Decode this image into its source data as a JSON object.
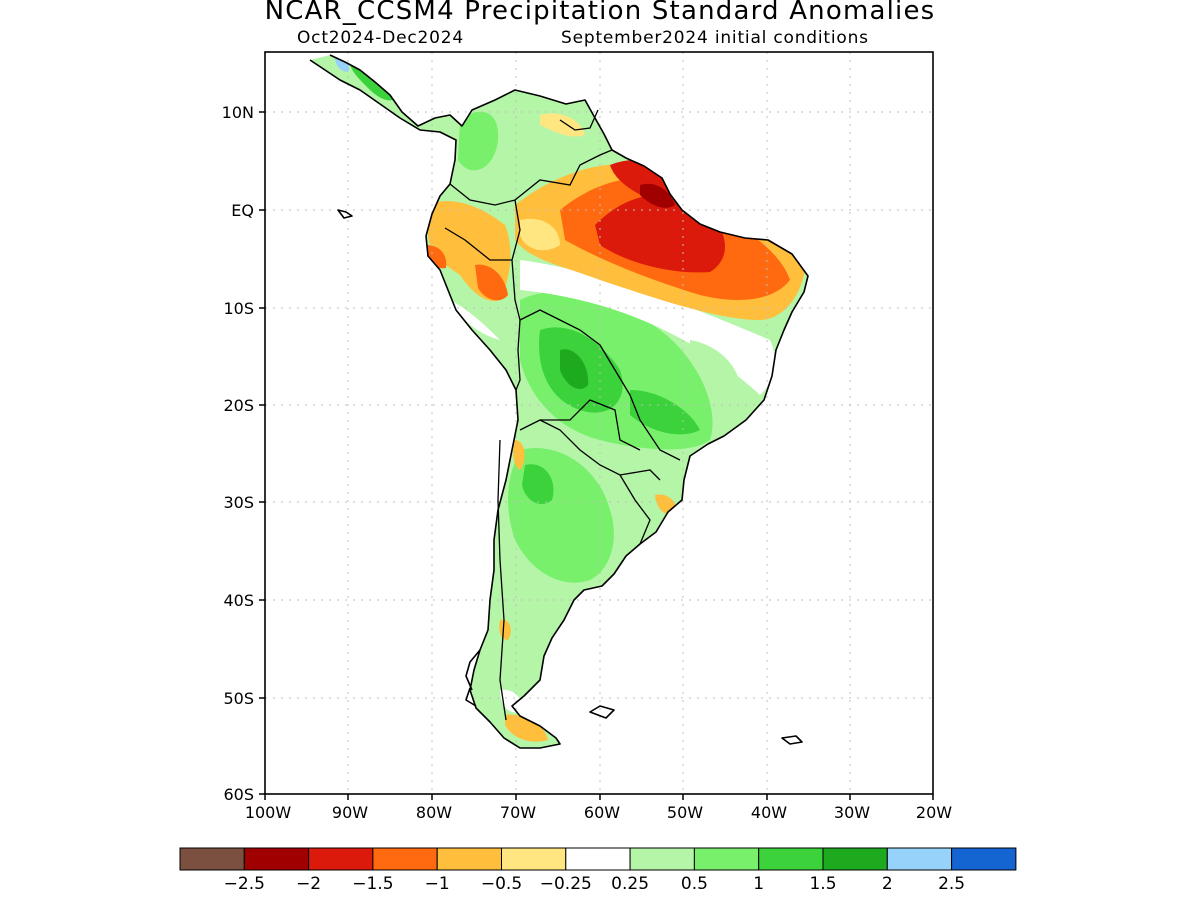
{
  "header": {
    "title": "NCAR_CCSM4 Precipitation Standard Anomalies",
    "period": "Oct2024-Dec2024",
    "init": "September2024 initial conditions"
  },
  "axes": {
    "lat_labels": [
      "10N",
      "EQ",
      "10S",
      "20S",
      "30S",
      "40S",
      "50S",
      "60S"
    ],
    "lon_labels": [
      "100W",
      "90W",
      "80W",
      "70W",
      "60W",
      "50W",
      "40W",
      "30W",
      "20W"
    ]
  },
  "colorbar": {
    "colors": [
      "#7b5040",
      "#a00000",
      "#dc1a0c",
      "#ff6a10",
      "#ffbe3c",
      "#ffe680",
      "#ffffff",
      "#b4f5a8",
      "#78f06c",
      "#3cd23c",
      "#1eaa1e",
      "#96d2fa",
      "#1464d2"
    ],
    "labels": [
      "-2.5",
      "-2",
      "-1.5",
      "-1",
      "-0.5",
      "-0.25",
      "0.25",
      "0.5",
      "1",
      "1.5",
      "2",
      "2.5"
    ]
  },
  "colors": {
    "brown": "#7b5040",
    "dark_red": "#a00000",
    "red": "#dc1a0c",
    "orange": "#ff6a10",
    "light_orange": "#ffbe3c",
    "yellow": "#ffe680",
    "white": "#ffffff",
    "light_green": "#b4f5a8",
    "green": "#78f06c",
    "mid_green": "#3cd23c",
    "dark_green": "#1eaa1e",
    "light_blue": "#96d2fa",
    "blue": "#1464d2"
  }
}
